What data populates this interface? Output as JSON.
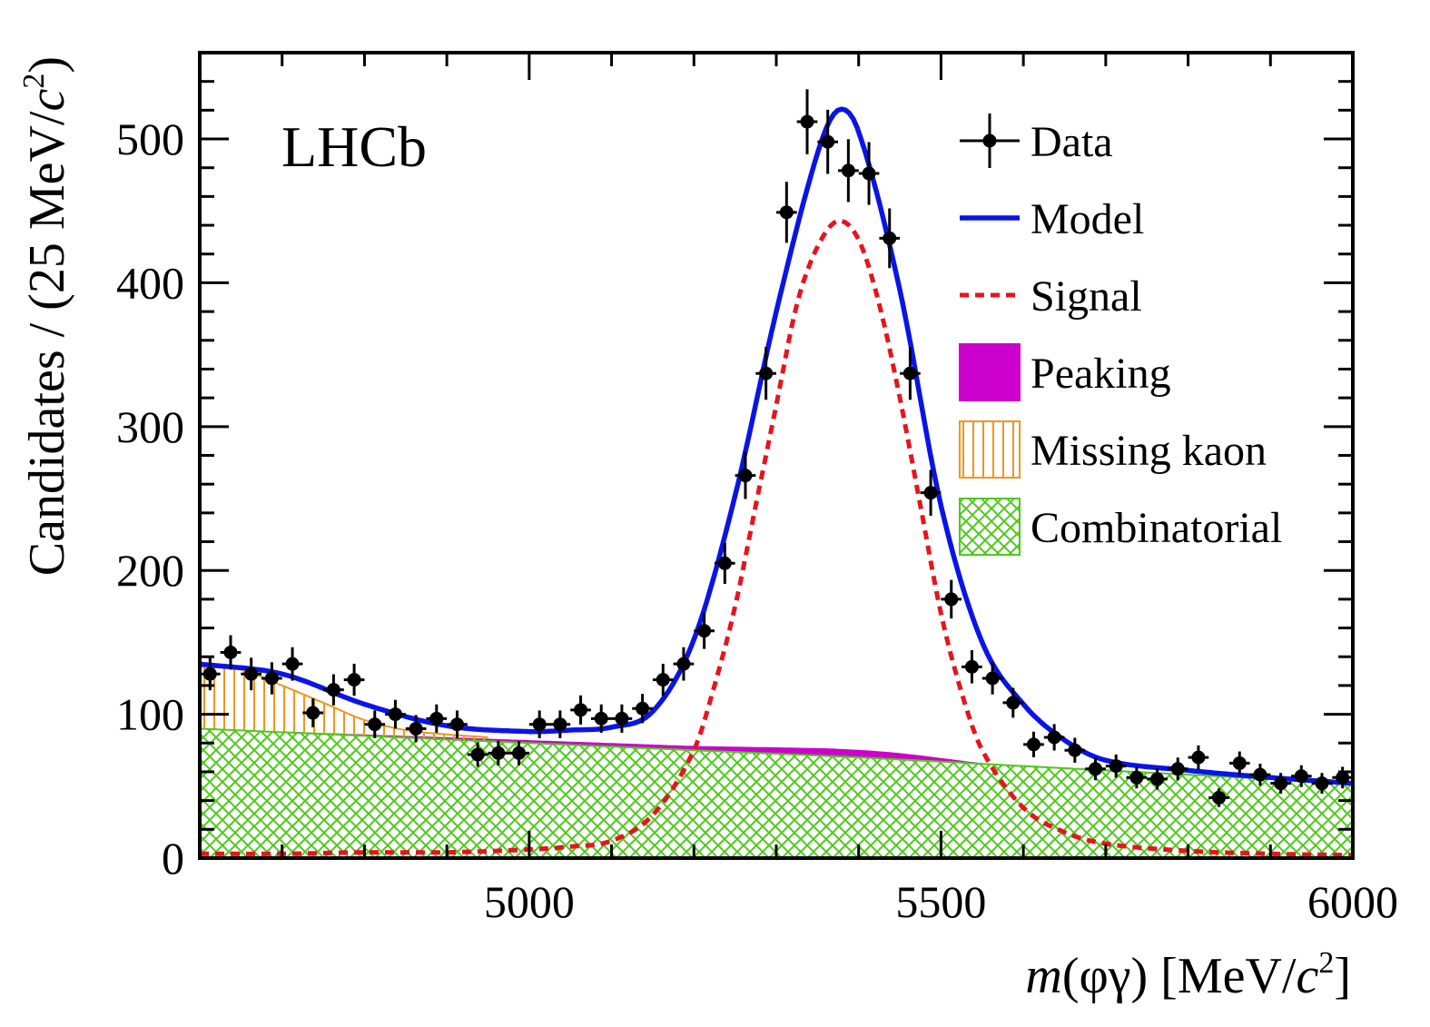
{
  "chart_data": {
    "type": "line",
    "experiment_label": "LHCb",
    "x_axis": {
      "label_prefix": "m(φγ)",
      "label_unit": "[MeV/c²]",
      "xlim": [
        4600,
        6000
      ],
      "ticks": [
        5000,
        5500,
        6000
      ],
      "tick_labels": [
        "5000",
        "5500",
        "6000"
      ]
    },
    "y_axis": {
      "label": "Candidates / (25 MeV/c²)",
      "ylim": [
        0,
        560
      ],
      "ticks": [
        0,
        100,
        200,
        300,
        400,
        500
      ],
      "tick_labels": [
        "0",
        "100",
        "200",
        "300",
        "400",
        "500"
      ]
    },
    "legend": {
      "placement": "top-right",
      "entries": [
        {
          "label": "Data",
          "style": "points"
        },
        {
          "label": "Model",
          "style": "line",
          "color": "#0a14e6"
        },
        {
          "label": "Signal",
          "style": "dashed",
          "color": "#e6141e"
        },
        {
          "label": "Peaking",
          "style": "fill",
          "color": "#cc00cc"
        },
        {
          "label": "Missing kaon",
          "style": "vertical-hatch",
          "color": "#f0961e"
        },
        {
          "label": "Combinatorial",
          "style": "cross-hatch",
          "color": "#50c81e"
        }
      ]
    },
    "data_points": {
      "name": "Data",
      "x": [
        4612.5,
        4637.5,
        4662.5,
        4687.5,
        4712.5,
        4737.5,
        4762.5,
        4787.5,
        4812.5,
        4837.5,
        4862.5,
        4887.5,
        4912.5,
        4937.5,
        4962.5,
        4987.5,
        5012.5,
        5037.5,
        5062.5,
        5087.5,
        5112.5,
        5137.5,
        5162.5,
        5187.5,
        5212.5,
        5237.5,
        5262.5,
        5287.5,
        5312.5,
        5337.5,
        5362.5,
        5387.5,
        5412.5,
        5437.5,
        5462.5,
        5487.5,
        5512.5,
        5537.5,
        5562.5,
        5587.5,
        5612.5,
        5637.5,
        5662.5,
        5687.5,
        5712.5,
        5737.5,
        5762.5,
        5787.5,
        5812.5,
        5837.5,
        5862.5,
        5887.5,
        5912.5,
        5937.5,
        5962.5,
        5987.5
      ],
      "y": [
        128,
        143,
        128,
        125,
        135,
        101,
        117,
        124,
        93,
        100,
        90,
        97,
        93,
        72,
        73,
        73,
        93,
        93,
        103,
        97,
        97,
        104,
        124,
        135,
        158,
        205,
        266,
        337,
        449,
        512,
        498,
        478,
        476,
        431,
        337,
        254,
        180,
        133,
        125,
        108,
        79,
        84,
        75,
        62,
        64,
        56,
        55,
        62,
        70,
        42,
        66,
        58,
        52,
        57,
        52,
        56
      ]
    },
    "series": [
      {
        "name": "Model",
        "style": "line",
        "color": "#0a14e6",
        "x": [
          4600,
          4700,
          4800,
          4900,
          5000,
          5050,
          5100,
          5150,
          5200,
          5250,
          5300,
          5350,
          5375,
          5400,
          5450,
          5500,
          5550,
          5600,
          5650,
          5700,
          5800,
          5900,
          6000
        ],
        "y": [
          135,
          128,
          107,
          92,
          88,
          89,
          91,
          102,
          152,
          252,
          380,
          490,
          520,
          505,
          395,
          245,
          150,
          107,
          82,
          68,
          61,
          56,
          52
        ]
      },
      {
        "name": "Signal",
        "style": "dashed",
        "color": "#e6141e",
        "x": [
          4600,
          4700,
          4800,
          4900,
          5000,
          5050,
          5100,
          5150,
          5200,
          5225,
          5250,
          5275,
          5300,
          5325,
          5350,
          5375,
          5400,
          5425,
          5450,
          5475,
          5500,
          5525,
          5550,
          5600,
          5650,
          5700,
          5800,
          5900,
          6000
        ],
        "y": [
          3,
          3,
          4,
          4,
          6,
          8,
          12,
          30,
          75,
          120,
          175,
          245,
          315,
          385,
          425,
          443,
          430,
          385,
          320,
          245,
          170,
          115,
          75,
          35,
          18,
          10,
          5,
          3,
          2
        ]
      },
      {
        "name": "Peaking",
        "style": "fill",
        "color": "#cc00cc",
        "x": [
          4600,
          5000,
          5100,
          5200,
          5300,
          5375,
          5450,
          5550,
          5650,
          6000
        ],
        "y": [
          90,
          82,
          80,
          78,
          77,
          76,
          73,
          66,
          60,
          50
        ]
      },
      {
        "name": "Missing kaon",
        "style": "vertical-hatch",
        "color": "#f0961e",
        "x": [
          4600,
          4650,
          4700,
          4750,
          4800,
          4850,
          4900,
          4950
        ],
        "y": [
          133,
          131,
          120,
          108,
          96,
          89,
          86,
          84
        ]
      },
      {
        "name": "Combinatorial",
        "style": "cross-hatch",
        "color": "#50c81e",
        "x": [
          4600,
          4800,
          5000,
          5200,
          5400,
          5600,
          5800,
          6000
        ],
        "y": [
          90,
          85,
          80,
          75,
          70,
          64,
          58,
          52
        ]
      }
    ]
  }
}
